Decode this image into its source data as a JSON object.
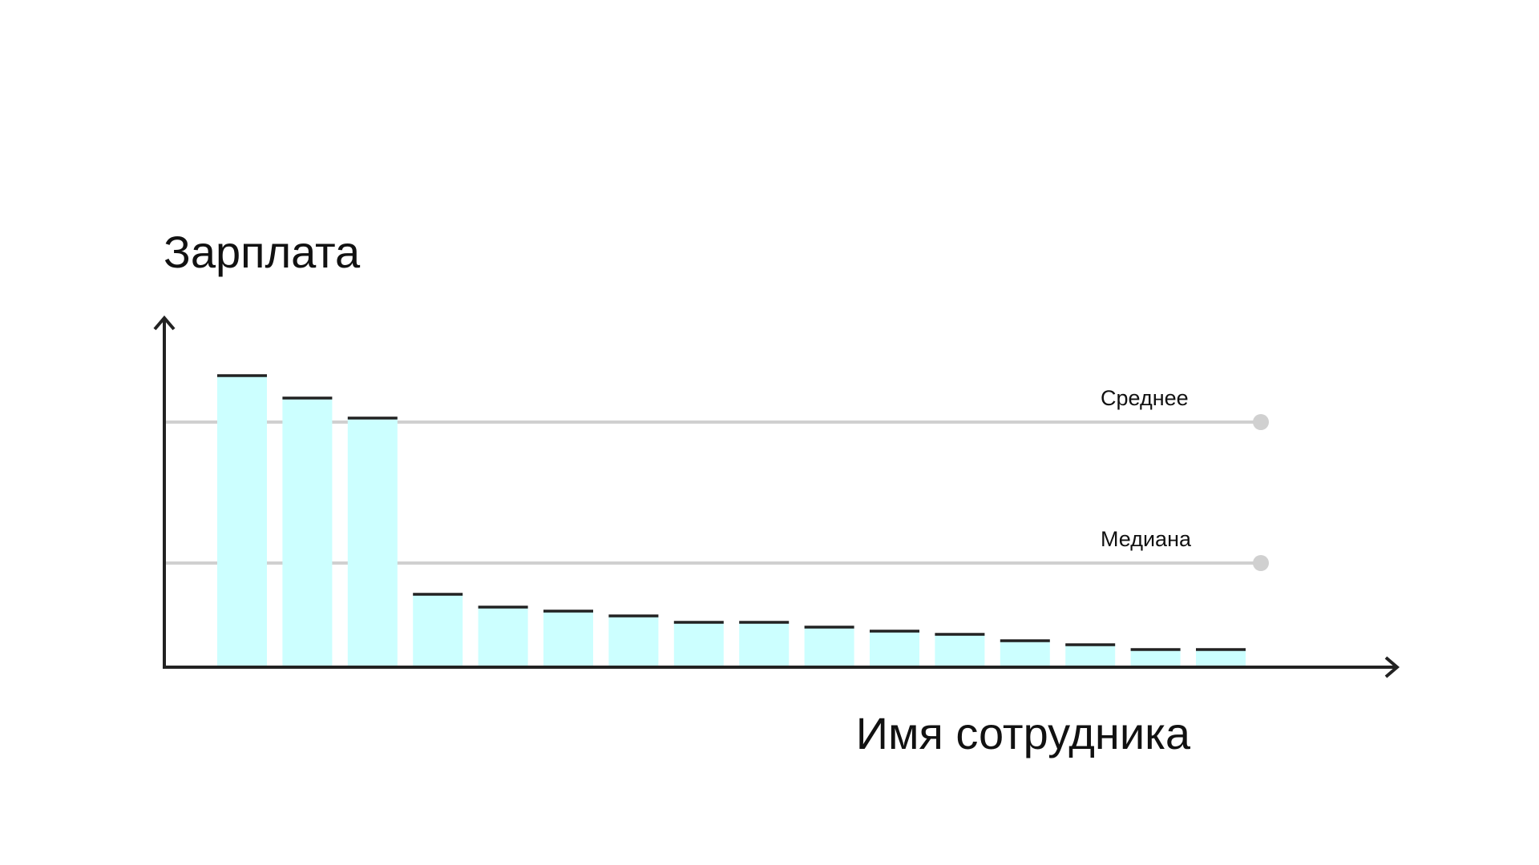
{
  "chart_data": {
    "type": "bar",
    "title": "",
    "xlabel": "Имя сотрудника",
    "ylabel": "Зарплата",
    "categories": [
      "",
      "",
      "",
      "",
      "",
      "",
      "",
      "",
      "",
      "",
      "",
      "",
      "",
      "",
      "",
      ""
    ],
    "values": [
      364,
      336,
      311,
      91,
      75,
      70,
      64,
      56,
      56,
      50,
      45,
      41,
      33,
      28,
      22,
      22
    ],
    "ylim": [
      0,
      430
    ],
    "grid": false,
    "reference_lines": [
      {
        "label": "Среднее",
        "value": 306
      },
      {
        "label": "Медиана",
        "value": 130
      }
    ],
    "colors": {
      "bar_fill": "#ccffff",
      "bar_cap": "#222222",
      "axis": "#222222",
      "reference_line": "#d0d0d0"
    }
  }
}
